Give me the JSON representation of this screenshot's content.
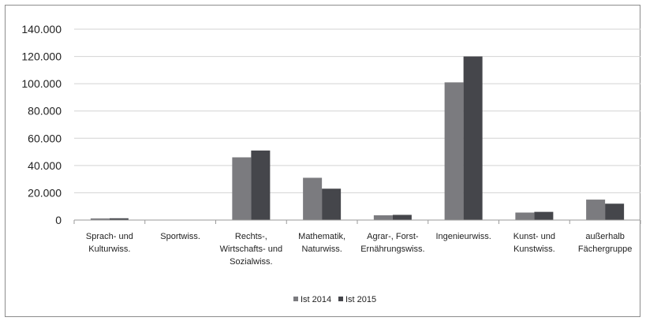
{
  "chart_data": {
    "type": "bar",
    "title": "",
    "xlabel": "",
    "ylabel": "",
    "ylim": [
      0,
      140000
    ],
    "yticks": [
      0,
      20000,
      40000,
      60000,
      80000,
      100000,
      120000,
      140000
    ],
    "ytick_labels": [
      "0",
      "20.000",
      "40.000",
      "60.000",
      "80.000",
      "100.000",
      "120.000",
      "140.000"
    ],
    "grid": true,
    "legend_position": "bottom",
    "categories": [
      [
        "Sprach- und",
        "Kulturwiss."
      ],
      [
        "Sportwiss."
      ],
      [
        "Rechts-,",
        "Wirtschafts- und",
        "Sozialwiss."
      ],
      [
        "Mathematik,",
        "Naturwiss."
      ],
      [
        "Agrar-, Forst-",
        "Ernährungswiss."
      ],
      [
        "Ingenieurwiss."
      ],
      [
        "Kunst- und",
        "Kunstwiss."
      ],
      [
        "außerhalb",
        "Fächergruppe"
      ]
    ],
    "series": [
      {
        "name": "Ist 2014",
        "color": "#7b7b7f",
        "values": [
          1200,
          0,
          46000,
          31000,
          3500,
          101000,
          5500,
          15000
        ]
      },
      {
        "name": "Ist 2015",
        "color": "#45464b",
        "values": [
          1300,
          0,
          51000,
          23000,
          3800,
          120000,
          6000,
          12000
        ]
      }
    ]
  }
}
